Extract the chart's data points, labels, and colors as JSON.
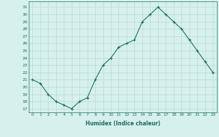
{
  "x": [
    0,
    1,
    2,
    3,
    4,
    5,
    6,
    7,
    8,
    9,
    10,
    11,
    12,
    13,
    14,
    15,
    16,
    17,
    18,
    19,
    20,
    21,
    22,
    23
  ],
  "y": [
    21,
    20.5,
    19,
    18,
    17.5,
    17,
    18,
    18.5,
    21,
    23,
    24,
    25.5,
    26,
    26.5,
    29,
    30,
    31,
    30,
    29,
    28,
    26.5,
    25,
    23.5,
    22
  ],
  "line_color": "#1a6b5e",
  "bg_color": "#d6f0ed",
  "grid_color": "#b8d8d4",
  "xlabel": "Humidex (Indice chaleur)",
  "ylabel_ticks": [
    17,
    18,
    19,
    20,
    21,
    22,
    23,
    24,
    25,
    26,
    27,
    28,
    29,
    30,
    31
  ],
  "ylim": [
    16.5,
    31.8
  ],
  "xlim": [
    -0.5,
    23.5
  ],
  "marker": "+"
}
